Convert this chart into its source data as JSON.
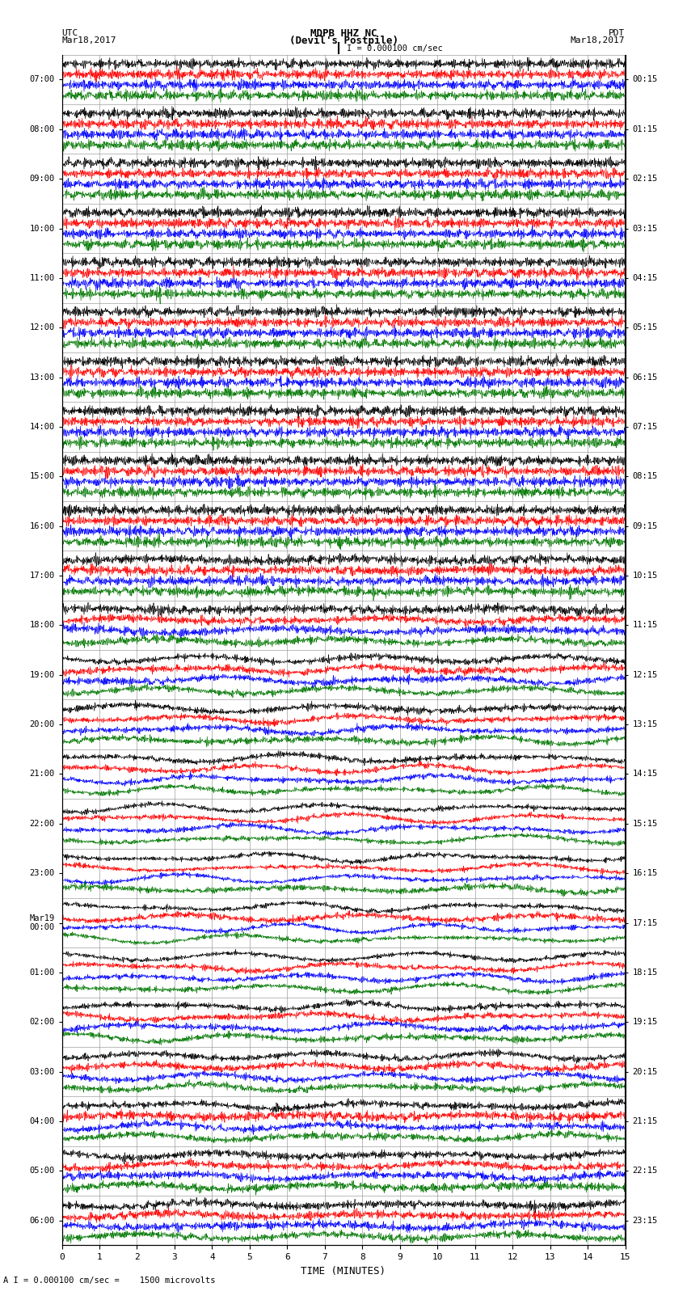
{
  "title_line1": "MDPB HHZ NC",
  "title_line2": "(Devil's Postpile)",
  "scale_label": "I = 0.000100 cm/sec",
  "utc_label": "UTC",
  "utc_date": "Mar18,2017",
  "pdt_label": "PDT",
  "pdt_date": "Mar18,2017",
  "bottom_label": "A I = 0.000100 cm/sec =    1500 microvolts",
  "xlabel": "TIME (MINUTES)",
  "left_times": [
    "07:00",
    "08:00",
    "09:00",
    "10:00",
    "11:00",
    "12:00",
    "13:00",
    "14:00",
    "15:00",
    "16:00",
    "17:00",
    "18:00",
    "19:00",
    "20:00",
    "21:00",
    "22:00",
    "23:00",
    "Mar19\n00:00",
    "01:00",
    "02:00",
    "03:00",
    "04:00",
    "05:00",
    "06:00"
  ],
  "right_times": [
    "00:15",
    "01:15",
    "02:15",
    "03:15",
    "04:15",
    "05:15",
    "06:15",
    "07:15",
    "08:15",
    "09:15",
    "10:15",
    "11:15",
    "12:15",
    "13:15",
    "14:15",
    "15:15",
    "16:15",
    "17:15",
    "18:15",
    "19:15",
    "20:15",
    "21:15",
    "22:15",
    "23:15"
  ],
  "trace_colors": [
    "#000000",
    "#ff0000",
    "#0000ff",
    "#007700"
  ],
  "bg_color": "#ffffff",
  "grid_color": "#888888",
  "n_rows": 24,
  "n_traces_per_row": 4,
  "time_minutes": 15,
  "figsize": [
    8.5,
    16.13
  ],
  "dpi": 100,
  "N_samples": 1800,
  "amp_profile": [
    0.12,
    0.12,
    0.13,
    0.14,
    0.15,
    0.16,
    0.18,
    0.2,
    0.22,
    0.28,
    0.35,
    0.45,
    0.55,
    0.7,
    0.9,
    1.2,
    1.6,
    2.0,
    2.2,
    2.0,
    1.7,
    1.4,
    1.1,
    0.8
  ],
  "wave_amp_profile": [
    0.0,
    0.0,
    0.0,
    0.0,
    0.0,
    0.0,
    0.0,
    0.0,
    0.0,
    0.0,
    0.1,
    0.3,
    0.6,
    1.0,
    1.5,
    2.5,
    3.5,
    4.5,
    4.0,
    3.0,
    2.0,
    1.5,
    1.0,
    0.6
  ]
}
